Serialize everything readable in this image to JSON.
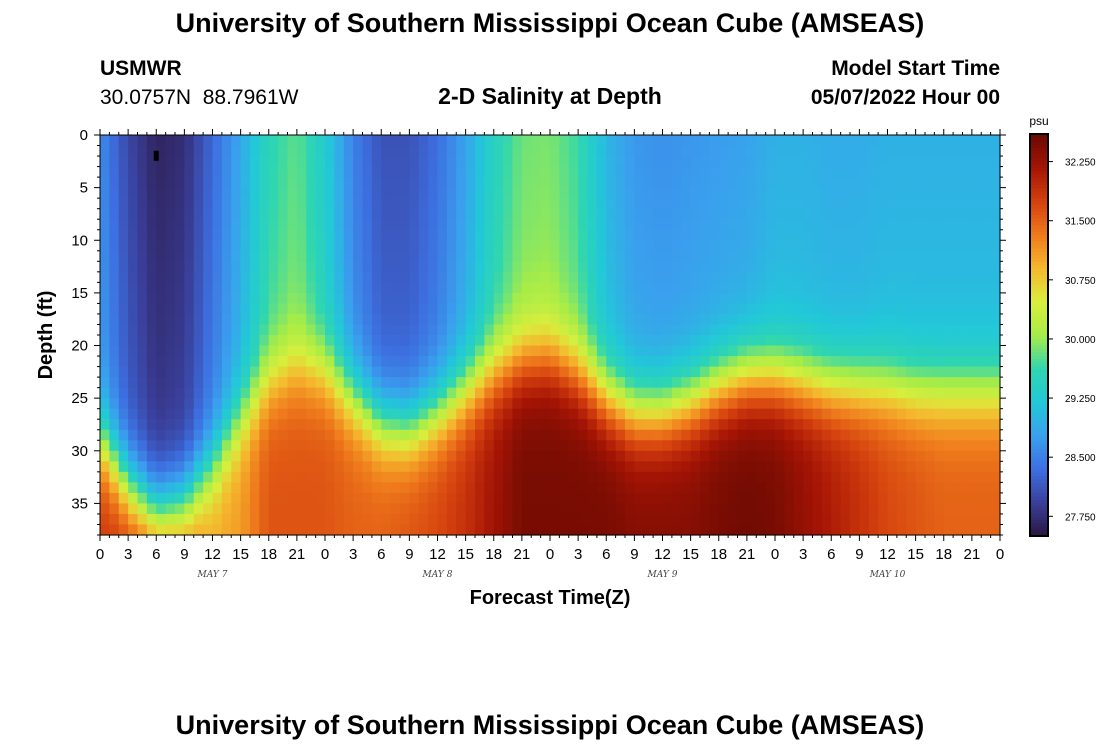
{
  "page": {
    "title": "University of Southern Mississippi Ocean Cube (AMSEAS)",
    "station": "USMWR",
    "coords": "30.0757N  88.7961W",
    "model_start_label": "Model Start Time",
    "model_start_value": "05/07/2022 Hour 00",
    "footer_title": "University of Southern Mississippi Ocean Cube (AMSEAS)"
  },
  "colors": {
    "scale": [
      "#2a1640",
      "#3a3f9a",
      "#3d6fe0",
      "#3aa0ee",
      "#22c8d8",
      "#2fd6b0",
      "#a6ec48",
      "#d9ee3c",
      "#f5b82e",
      "#ef7a1c",
      "#d4400e",
      "#a51405",
      "#6a0a02"
    ]
  },
  "chart_data": {
    "type": "heatmap",
    "title": "2-D Salinity at Depth",
    "xlabel": "Forecast Time(Z)",
    "ylabel": "Depth (ft)",
    "x_ticks": [
      "0",
      "3",
      "6",
      "9",
      "12",
      "15",
      "18",
      "21",
      "0",
      "3",
      "6",
      "9",
      "12",
      "15",
      "18",
      "21",
      "0",
      "3",
      "6",
      "9",
      "12",
      "15",
      "18",
      "21",
      "0",
      "3",
      "6",
      "9",
      "12",
      "15",
      "18",
      "21",
      "0"
    ],
    "x_range_hours": [
      0,
      96
    ],
    "date_labels": [
      {
        "text": "MAY 7",
        "hour": 12
      },
      {
        "text": "MAY 8",
        "hour": 36
      },
      {
        "text": "MAY 9",
        "hour": 60
      },
      {
        "text": "MAY 10",
        "hour": 84
      }
    ],
    "y_ticks": [
      0,
      5,
      10,
      15,
      20,
      25,
      30,
      35
    ],
    "y_range_ft": [
      0,
      38
    ],
    "colorbar": {
      "unit": "psu",
      "range": [
        27.5,
        32.6
      ],
      "tick_values": [
        32.25,
        31.5,
        30.75,
        30.0,
        29.25,
        28.5,
        27.75
      ],
      "tick_labels": [
        "32.250",
        "31.500",
        "30.750",
        "30.000",
        "29.250",
        "28.500",
        "27.750"
      ]
    },
    "time_hours": [
      0,
      3,
      6,
      9,
      12,
      15,
      18,
      21,
      24,
      27,
      30,
      33,
      36,
      39,
      42,
      45,
      48,
      51,
      54,
      57,
      60,
      63,
      66,
      69,
      72,
      75,
      78,
      81,
      84,
      87,
      90,
      93,
      96
    ],
    "surface_salinity": [
      28.6,
      28.0,
      27.65,
      27.75,
      28.3,
      28.85,
      29.55,
      29.8,
      29.3,
      28.5,
      28.1,
      28.1,
      28.35,
      28.8,
      29.45,
      29.85,
      29.9,
      29.65,
      29.0,
      28.7,
      28.65,
      28.7,
      28.75,
      28.8,
      28.95,
      28.95,
      28.9,
      28.9,
      28.95,
      28.95,
      28.95,
      28.95,
      28.95
    ],
    "halocline_depth_ft": [
      29.0,
      33.5,
      36.0,
      35.0,
      31.5,
      27.0,
      23.5,
      22.0,
      22.5,
      25.0,
      27.5,
      28.0,
      26.5,
      24.5,
      22.5,
      21.3,
      21.0,
      22.5,
      25.0,
      26.5,
      26.5,
      25.5,
      24.0,
      23.0,
      23.0,
      23.5,
      24.0,
      24.0,
      24.0,
      24.5,
      24.5,
      24.5,
      24.5
    ],
    "bottom_salinity": [
      31.8,
      31.9,
      31.9,
      31.5,
      31.0,
      31.1,
      31.6,
      31.6,
      31.6,
      31.5,
      31.5,
      31.6,
      31.7,
      31.9,
      32.2,
      32.5,
      32.5,
      32.5,
      32.5,
      32.4,
      32.4,
      32.4,
      32.5,
      32.55,
      32.5,
      32.3,
      32.1,
      31.9,
      31.7,
      31.6,
      31.5,
      31.5,
      31.5
    ]
  }
}
